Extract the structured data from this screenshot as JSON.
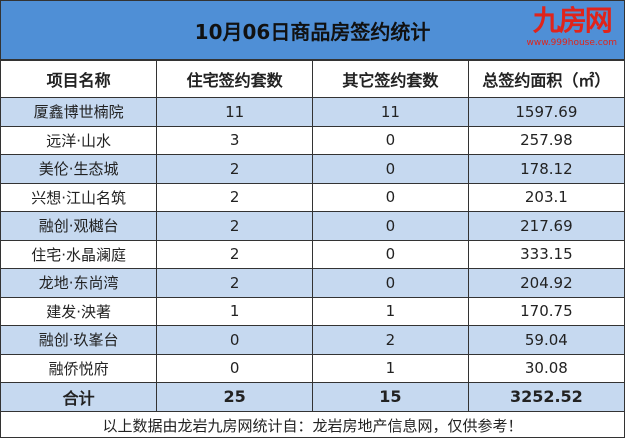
{
  "title": "10月06日商品房签约统计",
  "headers": [
    "项目名称",
    "住宅签约套数",
    "其它签约套数",
    "总签约面积（㎡）"
  ],
  "rows": [
    [
      "厦鑫博世楠院",
      "11",
      "11",
      "1597.69"
    ],
    [
      "远洋·山水",
      "3",
      "0",
      "257.98"
    ],
    [
      "美伦·生态城",
      "2",
      "0",
      "178.12"
    ],
    [
      "兴想·江山名筑",
      "2",
      "0",
      "203.1"
    ],
    [
      "融创·观樾台",
      "2",
      "0",
      "217.69"
    ],
    [
      "住宅·水晶澜庭",
      "2",
      "0",
      "333.15"
    ],
    [
      "龙地·东尚湾",
      "2",
      "0",
      "204.92"
    ],
    [
      "建发·泱著",
      "1",
      "1",
      "170.75"
    ],
    [
      "融创·玖峯台",
      "0",
      "2",
      "59.04"
    ],
    [
      "融侨悦府",
      "0",
      "1",
      "30.08"
    ]
  ],
  "total": [
    "合计",
    "25",
    "15",
    "3252.52"
  ],
  "footer": "以上数据由龙岩九房网统计自：龙岩房地产信息网，仅供参考！",
  "watermark": {
    "logo": "九房网",
    "url": "www.999house.com"
  },
  "colors": {
    "title_bg": "#4f8fd6",
    "alt_row": "#c6d9f0"
  }
}
